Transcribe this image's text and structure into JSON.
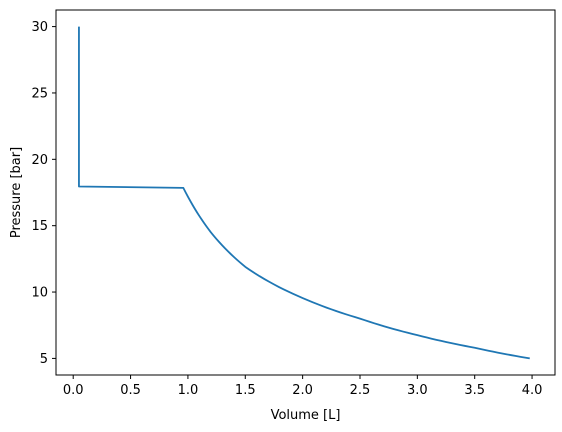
{
  "chart_data": {
    "type": "line",
    "title": "",
    "xlabel": "Volume [L]",
    "ylabel": "Pressure [bar]",
    "xlim": [
      -0.15,
      4.2
    ],
    "ylim": [
      3.75,
      31.25
    ],
    "x_ticks": [
      0.0,
      0.5,
      1.0,
      1.5,
      2.0,
      2.5,
      3.0,
      3.5,
      4.0
    ],
    "x_tick_labels": [
      "0.0",
      "0.5",
      "1.0",
      "1.5",
      "2.0",
      "2.5",
      "3.0",
      "3.5",
      "4.0"
    ],
    "y_ticks": [
      5,
      10,
      15,
      20,
      25,
      30
    ],
    "y_tick_labels": [
      "5",
      "10",
      "15",
      "20",
      "25",
      "30"
    ],
    "grid": false,
    "legend": false,
    "series": [
      {
        "color": "#1f77b4",
        "x": [
          0.05,
          0.05,
          0.96,
          1.2,
          1.5,
          2.0,
          2.5,
          3.0,
          3.5,
          3.98
        ],
        "y": [
          30.0,
          17.95,
          17.85,
          14.5,
          11.9,
          9.55,
          8.0,
          6.75,
          5.8,
          5.0
        ]
      }
    ]
  }
}
